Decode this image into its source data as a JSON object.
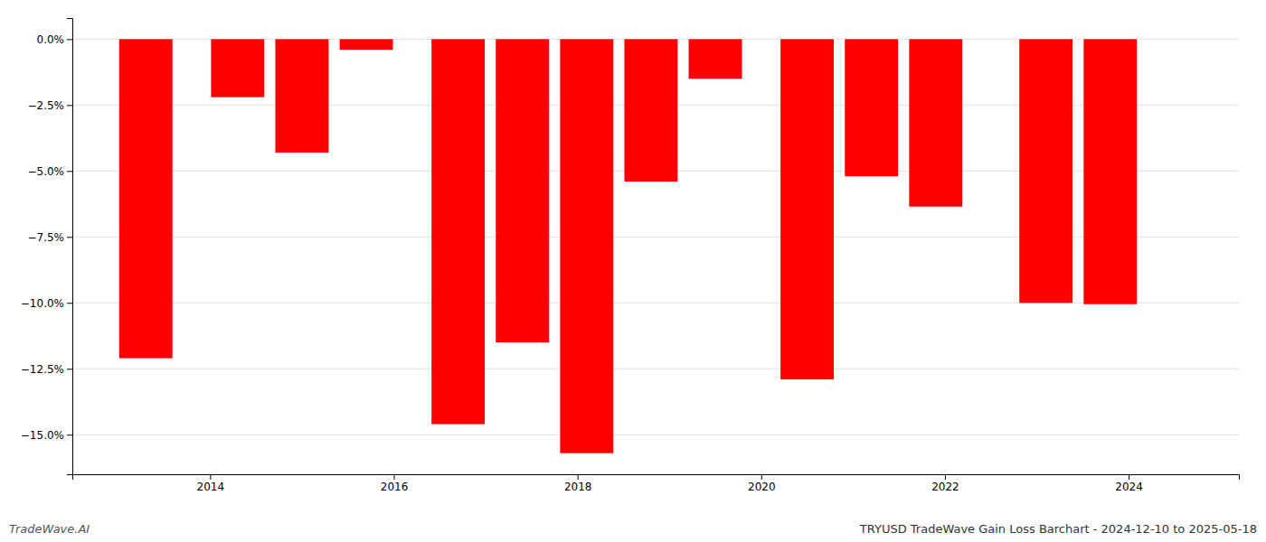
{
  "chart_data": {
    "type": "bar",
    "title": "TRYUSD TradeWave Gain Loss Barchart - 2024-12-10 to 2025-05-18",
    "annotations": [
      "TradeWave.AI"
    ],
    "x": [
      2013.3,
      2014.3,
      2015.0,
      2015.7,
      2016.7,
      2017.4,
      2018.1,
      2018.8,
      2019.5,
      2020.5,
      2021.2,
      2021.9,
      2023.1,
      2023.8
    ],
    "values": [
      -12.1,
      -2.2,
      -4.3,
      -0.4,
      -14.6,
      -11.5,
      -15.7,
      -5.4,
      -1.5,
      -12.9,
      -5.2,
      -6.35,
      -10.0,
      -10.05
    ],
    "color": "#ff0000",
    "xlim": [
      2012.5,
      2025.2
    ],
    "xticks": [
      2014,
      2016,
      2018,
      2020,
      2022,
      2024
    ],
    "ylim": [
      -16.5,
      0.8
    ],
    "yticks": [
      {
        "value": 0.0,
        "label": "0.0%"
      },
      {
        "value": -2.5,
        "label": "−2.5%"
      },
      {
        "value": -5.0,
        "label": "−5.0%"
      },
      {
        "value": -7.5,
        "label": "−7.5%"
      },
      {
        "value": -10.0,
        "label": "−10.0%"
      },
      {
        "value": -12.5,
        "label": "−12.5%"
      },
      {
        "value": -15.0,
        "label": "−15.0%"
      }
    ],
    "grid": true
  }
}
